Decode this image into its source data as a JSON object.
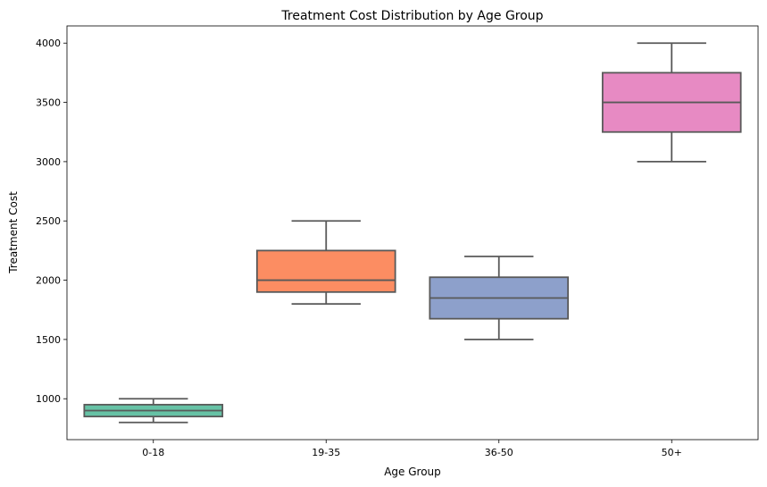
{
  "chart_data": {
    "type": "box",
    "title": "Treatment Cost Distribution by Age Group",
    "xlabel": "Age Group",
    "ylabel": "Treatment Cost",
    "categories": [
      "0-18",
      "19-35",
      "36-50",
      "50+"
    ],
    "boxes": [
      {
        "category": "0-18",
        "min": 800,
        "q1": 850,
        "median": 900,
        "q3": 950,
        "max": 1000,
        "color": "#66c2a5"
      },
      {
        "category": "19-35",
        "min": 1800,
        "q1": 1900,
        "median": 2000,
        "q3": 2250,
        "max": 2500,
        "color": "#fc8d62"
      },
      {
        "category": "36-50",
        "min": 1500,
        "q1": 1675,
        "median": 1850,
        "q3": 2025,
        "max": 2200,
        "color": "#8da0cb"
      },
      {
        "category": "50+",
        "min": 3000,
        "q1": 3250,
        "median": 3500,
        "q3": 3750,
        "max": 4000,
        "color": "#e78ac3"
      }
    ],
    "y_ticks": [
      1000,
      1500,
      2000,
      2500,
      3000,
      3500,
      4000
    ],
    "ylim": [
      655,
      4145
    ],
    "grid": false,
    "line_color": "#595959"
  }
}
